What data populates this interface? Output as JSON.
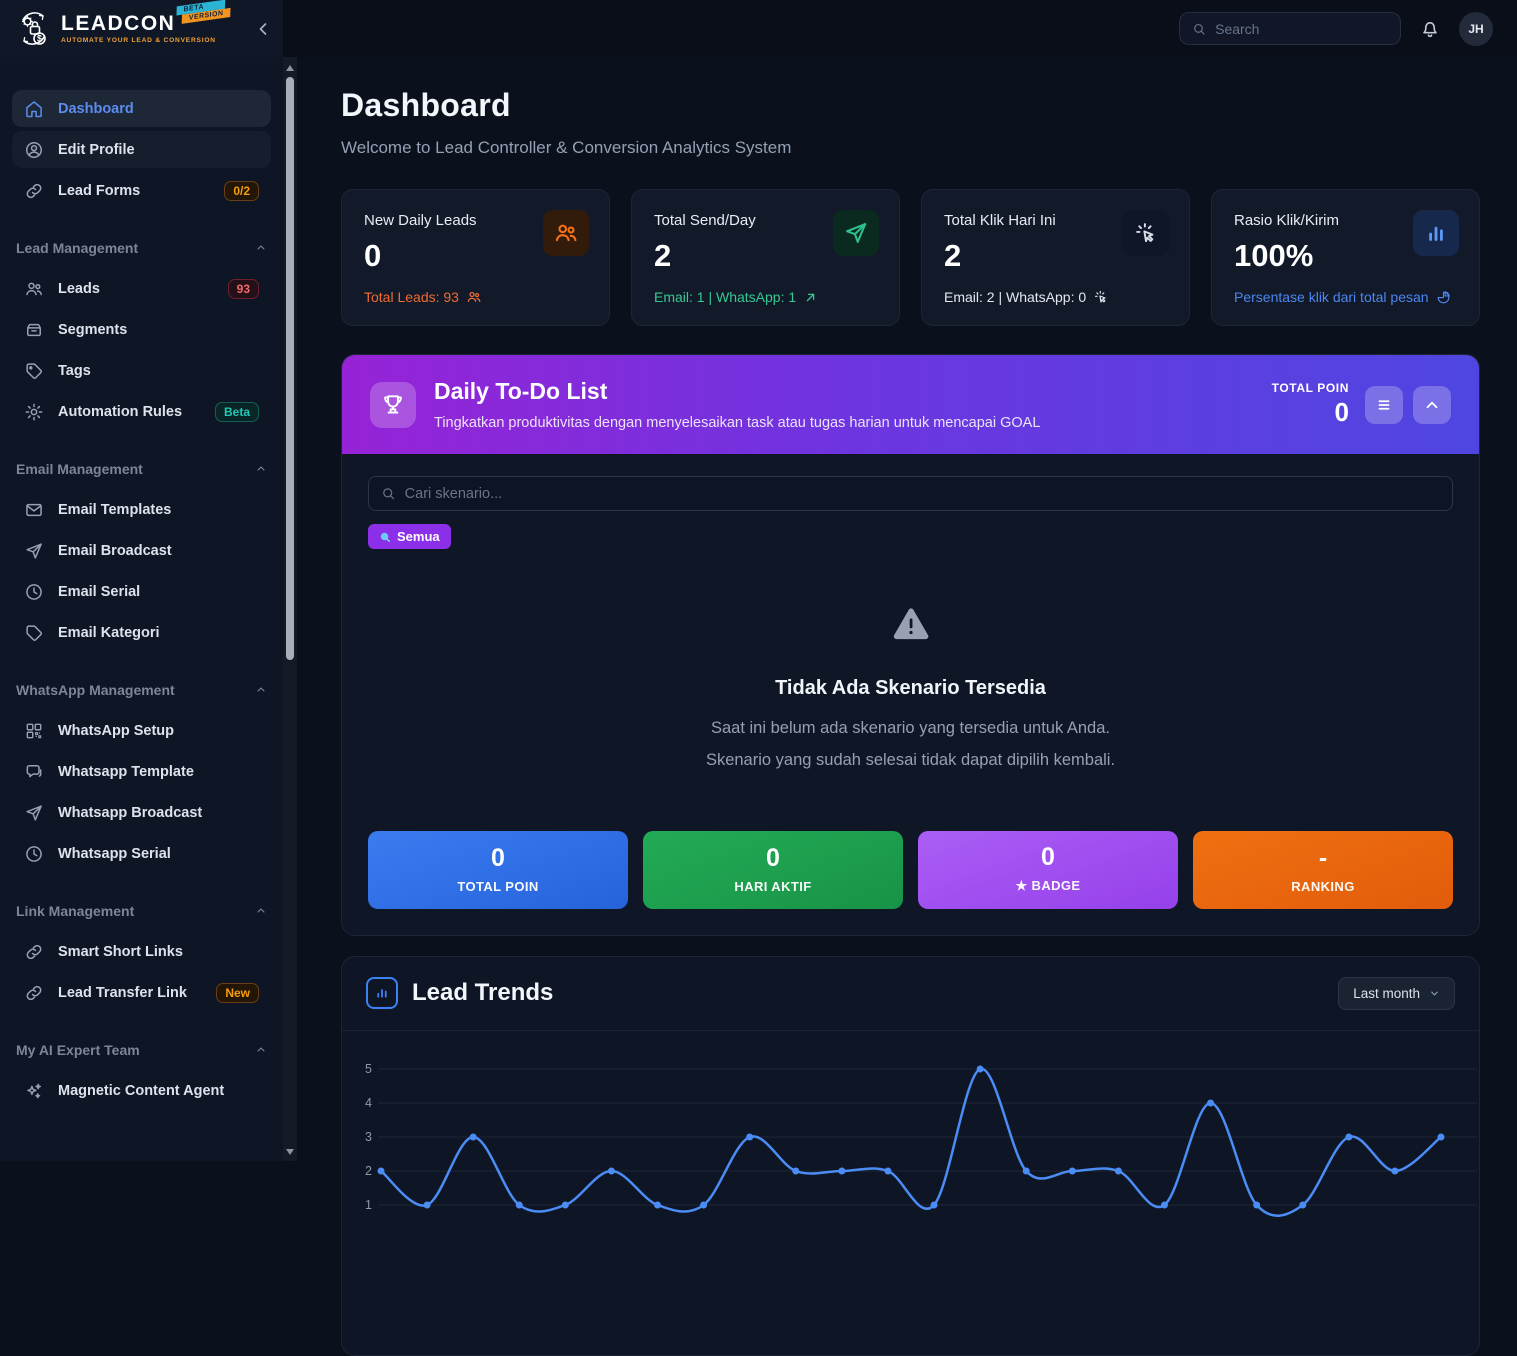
{
  "brand": {
    "name": "LEADCON",
    "beta_top": "BETA",
    "beta_bottom": "VERSION",
    "tagline": "AUTOMATE YOUR LEAD & CONVERSION"
  },
  "topbar": {
    "search_placeholder": "Search",
    "avatar_initials": "JH"
  },
  "sidebar": {
    "primary": [
      {
        "label": "Dashboard"
      },
      {
        "label": "Edit Profile"
      },
      {
        "label": "Lead Forms",
        "badge": "0/2"
      }
    ],
    "sections": [
      {
        "title": "Lead Management",
        "items": [
          {
            "label": "Leads",
            "badge": "93"
          },
          {
            "label": "Segments"
          },
          {
            "label": "Tags"
          },
          {
            "label": "Automation Rules",
            "badge": "Beta"
          }
        ]
      },
      {
        "title": "Email Management",
        "items": [
          {
            "label": "Email Templates"
          },
          {
            "label": "Email Broadcast"
          },
          {
            "label": "Email Serial"
          },
          {
            "label": "Email Kategori"
          }
        ]
      },
      {
        "title": "WhatsApp Management",
        "items": [
          {
            "label": "WhatsApp Setup"
          },
          {
            "label": "Whatsapp Template"
          },
          {
            "label": "Whatsapp Broadcast"
          },
          {
            "label": "Whatsapp Serial"
          }
        ]
      },
      {
        "title": "Link Management",
        "items": [
          {
            "label": "Smart Short Links"
          },
          {
            "label": "Lead Transfer Link",
            "badge": "New"
          }
        ]
      },
      {
        "title": "My AI Expert Team",
        "items": [
          {
            "label": "Magnetic Content Agent"
          }
        ]
      }
    ]
  },
  "page": {
    "title": "Dashboard",
    "subtitle": "Welcome to Lead Controller & Conversion Analytics System"
  },
  "stat_cards": [
    {
      "label": "New Daily Leads",
      "value": "0",
      "sub": "Total Leads: 93"
    },
    {
      "label": "Total Send/Day",
      "value": "2",
      "sub": "Email: 1 | WhatsApp: 1"
    },
    {
      "label": "Total Klik Hari Ini",
      "value": "2",
      "sub": "Email: 2 | WhatsApp: 0"
    },
    {
      "label": "Rasio Klik/Kirim",
      "value": "100%",
      "sub": "Persentase klik dari total pesan"
    }
  ],
  "todo": {
    "title": "Daily To-Do List",
    "subtitle": "Tingkatkan produktivitas dengan menyelesaikan task atau tugas harian untuk mencapai GOAL",
    "total_poin_label": "TOTAL POIN",
    "total_poin_value": "0",
    "search_placeholder": "Cari skenario...",
    "filter_chip": "Semua",
    "empty": {
      "title": "Tidak Ada Skenario Tersedia",
      "line1": "Saat ini belum ada skenario yang tersedia untuk Anda.",
      "line2": "Skenario yang sudah selesai tidak dapat dipilih kembali."
    },
    "tiles": [
      {
        "value": "0",
        "label": "TOTAL POIN",
        "color": "#2f6fe4"
      },
      {
        "value": "0",
        "label": "HARI AKTIF",
        "color": "#1fa24d"
      },
      {
        "value": "0",
        "label": "★ BADGE",
        "color": "#a855f7"
      },
      {
        "value": "-",
        "label": "RANKING",
        "color": "#ea6310"
      }
    ]
  },
  "lead_trends": {
    "title": "Lead Trends",
    "range_label": "Last month"
  },
  "chart_data": {
    "type": "line",
    "title": "Lead Trends",
    "values": [
      2,
      1,
      3,
      1,
      1,
      2,
      1,
      1,
      3,
      2,
      2,
      2,
      1,
      5,
      2,
      2,
      2,
      1,
      4,
      1,
      1,
      3,
      2,
      3
    ],
    "yticks": [
      1,
      2,
      3,
      4,
      5
    ],
    "ylim": [
      1,
      5
    ],
    "line_color": "#4b8cf5",
    "grid": true,
    "legend": "none",
    "x_axis_visible": false
  }
}
